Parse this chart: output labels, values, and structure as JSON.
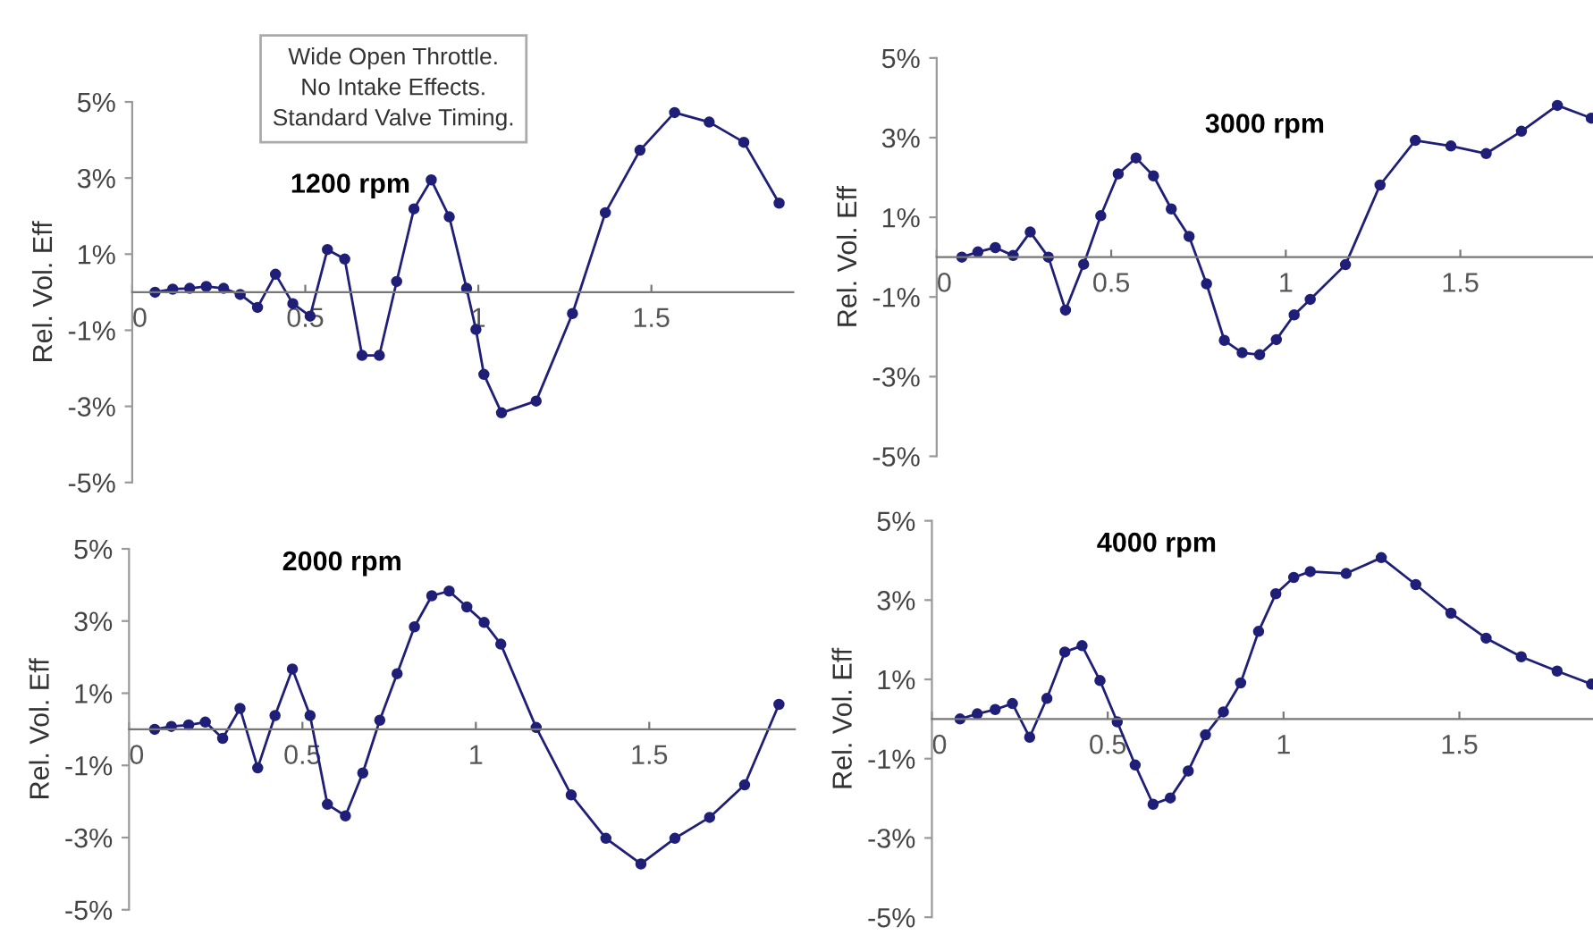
{
  "chart_data": [
    {
      "type": "line",
      "title": "1200 rpm",
      "ylabel": "Rel. Vol. Eff",
      "annotations": [
        "Wide Open Throttle.\nNo Intake Effects.\nStandard Valve Timing."
      ],
      "marker": "circle",
      "grid": false,
      "xlim": [
        0,
        1.91
      ],
      "ylim": [
        -5,
        5
      ],
      "xticks": [
        0,
        0.5,
        1,
        1.5
      ],
      "yticks": [
        {
          "value": -5,
          "label": "-5%"
        },
        {
          "value": -3,
          "label": "-3%"
        },
        {
          "value": -1,
          "label": "-1%"
        },
        {
          "value": 1,
          "label": "1%"
        },
        {
          "value": 3,
          "label": "3%"
        },
        {
          "value": 5,
          "label": "5%"
        }
      ],
      "series": [
        {
          "color": "#1f1f78",
          "x": [
            0.066,
            0.117,
            0.166,
            0.214,
            0.264,
            0.312,
            0.362,
            0.414,
            0.464,
            0.514,
            0.564,
            0.614,
            0.664,
            0.714,
            0.764,
            0.814,
            0.864,
            0.916,
            0.966,
            0.993,
            1.016,
            1.067,
            1.167,
            1.272,
            1.367,
            1.467,
            1.567,
            1.667,
            1.767,
            1.869
          ],
          "values": [
            0,
            0.08,
            0.1,
            0.15,
            0.1,
            -0.06,
            -0.4,
            0.47,
            -0.3,
            -0.63,
            1.12,
            0.87,
            -1.66,
            -1.66,
            0.28,
            2.19,
            2.95,
            1.98,
            0.1,
            -0.98,
            -2.16,
            -3.17,
            -2.86,
            -0.56,
            2.09,
            3.73,
            4.72,
            4.47,
            3.94,
            2.34
          ]
        }
      ]
    },
    {
      "type": "line",
      "title": "3000 rpm",
      "ylabel": "Rel. Vol. Eff",
      "marker": "circle",
      "grid": false,
      "xlim": [
        0,
        1.88
      ],
      "ylim": [
        -5,
        5
      ],
      "xticks": [
        0,
        0.5,
        1,
        1.5
      ],
      "yticks": [
        {
          "value": -5,
          "label": "-5%"
        },
        {
          "value": -3,
          "label": "-3%"
        },
        {
          "value": -1,
          "label": "-1%"
        },
        {
          "value": 1,
          "label": "1%"
        },
        {
          "value": 3,
          "label": "3%"
        },
        {
          "value": 5,
          "label": "5%"
        }
      ],
      "series": [
        {
          "color": "#1f1f78",
          "x": [
            0.072,
            0.118,
            0.168,
            0.219,
            0.268,
            0.32,
            0.369,
            0.421,
            0.47,
            0.52,
            0.571,
            0.621,
            0.672,
            0.723,
            0.773,
            0.824,
            0.875,
            0.925,
            0.973,
            1.024,
            1.07,
            1.171,
            1.27,
            1.371,
            1.473,
            1.574,
            1.675,
            1.778,
            1.875
          ],
          "values": [
            0,
            0.13,
            0.24,
            0.04,
            0.63,
            0,
            -1.33,
            -0.18,
            1.04,
            2.09,
            2.49,
            2.04,
            1.21,
            0.52,
            -0.67,
            -2.09,
            -2.4,
            -2.45,
            -2.07,
            -1.45,
            -1.06,
            -0.19,
            1.81,
            2.93,
            2.79,
            2.6,
            3.16,
            3.81,
            3.49
          ]
        }
      ]
    },
    {
      "type": "line",
      "title": "2000 rpm",
      "ylabel": "Rel. Vol. Eff",
      "marker": "circle",
      "grid": false,
      "xlim": [
        0,
        1.92
      ],
      "ylim": [
        -5,
        5
      ],
      "xticks": [
        0,
        0.5,
        1,
        1.5
      ],
      "yticks": [
        {
          "value": -5,
          "label": "-5%"
        },
        {
          "value": -3,
          "label": "-3%"
        },
        {
          "value": -1,
          "label": "-1%"
        },
        {
          "value": 1,
          "label": "1%"
        },
        {
          "value": 3,
          "label": "3%"
        },
        {
          "value": 5,
          "label": "5%"
        }
      ],
      "series": [
        {
          "color": "#1f1f78",
          "x": [
            0.074,
            0.122,
            0.172,
            0.22,
            0.27,
            0.32,
            0.371,
            0.421,
            0.471,
            0.522,
            0.572,
            0.624,
            0.674,
            0.723,
            0.773,
            0.823,
            0.873,
            0.923,
            0.974,
            1.024,
            1.072,
            1.174,
            1.275,
            1.375,
            1.476,
            1.574,
            1.674,
            1.775,
            1.874
          ],
          "values": [
            0,
            0.08,
            0.12,
            0.2,
            -0.25,
            0.58,
            -1.07,
            0.38,
            1.67,
            0.38,
            -2.08,
            -2.4,
            -1.21,
            0.25,
            1.54,
            2.84,
            3.7,
            3.83,
            3.39,
            2.96,
            2.36,
            0.05,
            -1.82,
            -3.02,
            -3.73,
            -3.02,
            -2.44,
            -1.54,
            0.69
          ]
        }
      ]
    },
    {
      "type": "line",
      "title": "4000 rpm",
      "ylabel": "Rel. Vol. Eff",
      "marker": "circle",
      "grid": false,
      "xlim": [
        0,
        1.88
      ],
      "ylim": [
        -5,
        5
      ],
      "xticks": [
        0,
        0.5,
        1,
        1.5
      ],
      "yticks": [
        {
          "value": -5,
          "label": "-5%"
        },
        {
          "value": -3,
          "label": "-3%"
        },
        {
          "value": -1,
          "label": "-1%"
        },
        {
          "value": 1,
          "label": "1%"
        },
        {
          "value": 3,
          "label": "3%"
        },
        {
          "value": 5,
          "label": "5%"
        }
      ],
      "series": [
        {
          "color": "#1f1f78",
          "x": [
            0.08,
            0.129,
            0.18,
            0.229,
            0.278,
            0.327,
            0.378,
            0.427,
            0.478,
            0.527,
            0.578,
            0.629,
            0.678,
            0.729,
            0.778,
            0.829,
            0.878,
            0.929,
            0.978,
            1.029,
            1.076,
            1.178,
            1.278,
            1.376,
            1.476,
            1.576,
            1.676,
            1.778,
            1.876
          ],
          "values": [
            0,
            0.13,
            0.24,
            0.39,
            -0.46,
            0.52,
            1.69,
            1.85,
            0.97,
            -0.07,
            -1.16,
            -2.15,
            -1.99,
            -1.31,
            -0.4,
            0.18,
            0.91,
            2.21,
            3.16,
            3.57,
            3.72,
            3.67,
            4.07,
            3.39,
            2.67,
            2.04,
            1.57,
            1.21,
            0.88
          ]
        }
      ]
    }
  ]
}
